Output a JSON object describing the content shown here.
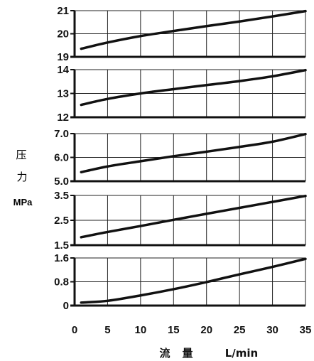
{
  "ylabel": {
    "line1": "压",
    "line2": "力",
    "unit": "MPa"
  },
  "xlabel": {
    "part1": "流",
    "part2": "量",
    "unit": "L/min"
  },
  "chart_data": [
    {
      "type": "line",
      "xlim": [
        0,
        35
      ],
      "ylim": [
        19,
        21
      ],
      "yticks": [
        "21",
        "20",
        "19"
      ],
      "grid": true,
      "x": [
        1,
        5,
        10,
        15,
        20,
        25,
        30,
        35
      ],
      "values": [
        19.35,
        19.62,
        19.9,
        20.12,
        20.33,
        20.53,
        20.75,
        20.98
      ]
    },
    {
      "type": "line",
      "xlim": [
        0,
        35
      ],
      "ylim": [
        12,
        14
      ],
      "yticks": [
        "14",
        "13",
        "12"
      ],
      "grid": true,
      "x": [
        1,
        5,
        10,
        15,
        20,
        25,
        30,
        35
      ],
      "values": [
        12.52,
        12.77,
        13.0,
        13.18,
        13.35,
        13.52,
        13.72,
        13.98
      ]
    },
    {
      "type": "line",
      "xlim": [
        0,
        35
      ],
      "ylim": [
        5,
        7
      ],
      "yticks": [
        "7.0",
        "6.0",
        "5.0"
      ],
      "grid": true,
      "x": [
        1,
        5,
        10,
        15,
        20,
        25,
        30,
        35
      ],
      "values": [
        5.38,
        5.62,
        5.84,
        6.05,
        6.24,
        6.44,
        6.66,
        6.98
      ]
    },
    {
      "type": "line",
      "xlim": [
        0,
        35
      ],
      "ylim": [
        1.5,
        3.5
      ],
      "yticks": [
        "3.5",
        "2.5",
        "1.5"
      ],
      "grid": true,
      "x": [
        1,
        5,
        10,
        15,
        20,
        25,
        30,
        35
      ],
      "values": [
        1.82,
        2.03,
        2.27,
        2.52,
        2.76,
        3.0,
        3.24,
        3.48
      ]
    },
    {
      "type": "line",
      "xlim": [
        0,
        35
      ],
      "ylim": [
        0,
        1.6
      ],
      "yticks": [
        "1.6",
        "0.8",
        "0"
      ],
      "grid": true,
      "x": [
        1,
        5,
        10,
        15,
        20,
        25,
        30,
        35
      ],
      "values": [
        0.1,
        0.16,
        0.34,
        0.55,
        0.79,
        1.05,
        1.3,
        1.57
      ],
      "xticks": [
        "0",
        "5",
        "10",
        "15",
        "20",
        "25",
        "30",
        "35"
      ]
    }
  ]
}
